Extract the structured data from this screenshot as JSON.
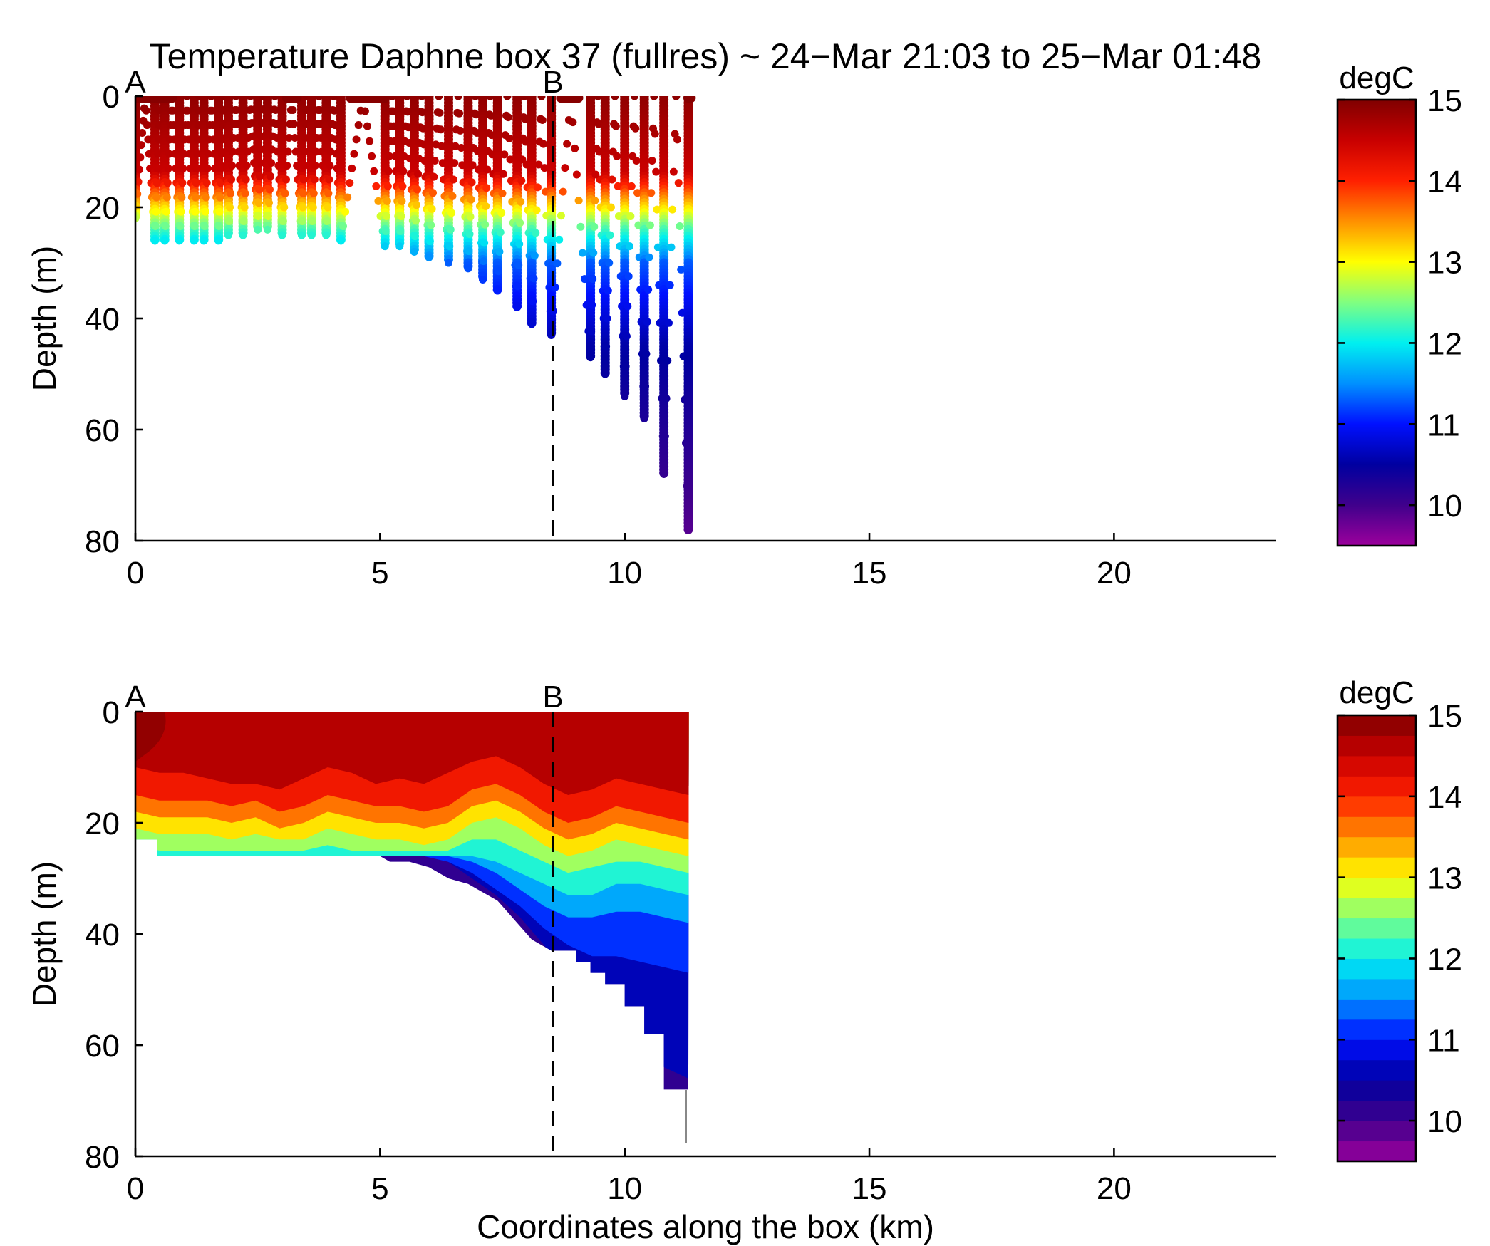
{
  "figure": {
    "title": "Temperature Daphne box 37 (fullres) ~ 24−Mar 21:03 to 25−Mar 01:48"
  },
  "colormap_stops": [
    "#9c009c",
    "#40008c",
    "#0000a0",
    "#0010ff",
    "#0090ff",
    "#00f0f0",
    "#80ff80",
    "#ffff00",
    "#ff9000",
    "#ff2000",
    "#c80000",
    "#800000"
  ],
  "chart_data": [
    {
      "type": "scatter",
      "panel": "top",
      "description_source": "glider profile samples colored by temperature",
      "xlabel": "",
      "ylabel": "Depth (m)",
      "xlim": [
        0,
        23.3
      ],
      "ylim": [
        80,
        0
      ],
      "x_ticks": [
        0,
        5,
        10,
        15,
        20
      ],
      "y_ticks": [
        0,
        20,
        40,
        60,
        80
      ],
      "markers": [
        {
          "label": "A",
          "x": 0
        },
        {
          "label": "B",
          "x": 8.6
        }
      ],
      "b_line_x": 8.6,
      "colorbar": {
        "unit": "degC",
        "ticks": [
          10,
          11,
          12,
          13,
          14,
          15
        ],
        "range": [
          9.5,
          15
        ],
        "continuous": true
      },
      "bottom_profile": [
        [
          0.0,
          22
        ],
        [
          0.5,
          26
        ],
        [
          1.0,
          26
        ],
        [
          1.5,
          26
        ],
        [
          2.0,
          25
        ],
        [
          2.5,
          24
        ],
        [
          3.0,
          25
        ],
        [
          3.6,
          25
        ],
        [
          4.2,
          26
        ],
        [
          5.0,
          27
        ],
        [
          5.5,
          28
        ],
        [
          6.0,
          29
        ],
        [
          6.5,
          31
        ],
        [
          7.0,
          33
        ],
        [
          7.5,
          35
        ],
        [
          8.0,
          38
        ],
        [
          8.6,
          43
        ],
        [
          9.0,
          45
        ],
        [
          9.3,
          47
        ],
        [
          9.6,
          50
        ],
        [
          10.0,
          54
        ],
        [
          10.4,
          58
        ],
        [
          10.8,
          68
        ],
        [
          11.3,
          78
        ]
      ],
      "profiles": [
        {
          "x": 0.0,
          "depth": 22
        },
        {
          "x": 0.4,
          "depth": 26
        },
        {
          "x": 0.6,
          "depth": 26
        },
        {
          "x": 0.9,
          "depth": 26
        },
        {
          "x": 1.2,
          "depth": 26
        },
        {
          "x": 1.4,
          "depth": 26
        },
        {
          "x": 1.7,
          "depth": 26
        },
        {
          "x": 1.9,
          "depth": 25
        },
        {
          "x": 2.2,
          "depth": 25
        },
        {
          "x": 2.5,
          "depth": 24
        },
        {
          "x": 2.7,
          "depth": 24
        },
        {
          "x": 3.0,
          "depth": 25
        },
        {
          "x": 3.4,
          "depth": 25
        },
        {
          "x": 3.6,
          "depth": 25
        },
        {
          "x": 3.9,
          "depth": 25
        },
        {
          "x": 4.2,
          "depth": 26
        },
        {
          "x": 5.1,
          "depth": 27
        },
        {
          "x": 5.4,
          "depth": 27
        },
        {
          "x": 5.7,
          "depth": 28
        },
        {
          "x": 6.0,
          "depth": 29
        },
        {
          "x": 6.4,
          "depth": 30
        },
        {
          "x": 6.8,
          "depth": 31
        },
        {
          "x": 7.1,
          "depth": 33
        },
        {
          "x": 7.4,
          "depth": 35
        },
        {
          "x": 7.8,
          "depth": 38
        },
        {
          "x": 8.1,
          "depth": 41
        },
        {
          "x": 8.5,
          "depth": 43
        },
        {
          "x": 9.3,
          "depth": 47
        },
        {
          "x": 9.6,
          "depth": 50
        },
        {
          "x": 10.0,
          "depth": 54
        },
        {
          "x": 10.4,
          "depth": 58
        },
        {
          "x": 10.8,
          "depth": 68
        },
        {
          "x": 11.3,
          "depth": 78
        }
      ],
      "surface_segments": [
        [
          0.0,
          0.8
        ],
        [
          3.1,
          3.3
        ],
        [
          4.4,
          5.1
        ],
        [
          8.7,
          9.1
        ],
        [
          11.3,
          11.4
        ]
      ]
    },
    {
      "type": "heatmap",
      "panel": "bottom",
      "description_source": "gridded temperature contour section",
      "xlabel": "Coordinates along the box (km)",
      "ylabel": "Depth (m)",
      "xlim": [
        0,
        23.3
      ],
      "ylim": [
        80,
        0
      ],
      "x_ticks": [
        0,
        5,
        10,
        15,
        20
      ],
      "y_ticks": [
        0,
        20,
        40,
        60,
        80
      ],
      "markers": [
        {
          "label": "A",
          "x": 0
        },
        {
          "label": "B",
          "x": 8.6
        }
      ],
      "b_line_x": 8.6,
      "colorbar": {
        "unit": "degC",
        "ticks": [
          10,
          11,
          12,
          13,
          14,
          15
        ],
        "range": [
          9.5,
          15
        ],
        "levels": 22
      },
      "data_extent_x": [
        0,
        11.3
      ],
      "bottom_boundary": [
        [
          0.0,
          23
        ],
        [
          0.45,
          23
        ],
        [
          0.45,
          26
        ],
        [
          5.0,
          26
        ],
        [
          5.2,
          27
        ],
        [
          5.6,
          27
        ],
        [
          6.0,
          28
        ],
        [
          6.4,
          30
        ],
        [
          6.8,
          31
        ],
        [
          7.0,
          32
        ],
        [
          7.4,
          34
        ],
        [
          7.6,
          36
        ],
        [
          7.8,
          38
        ],
        [
          8.1,
          41
        ],
        [
          8.5,
          43
        ],
        [
          9.0,
          43
        ],
        [
          9.0,
          45
        ],
        [
          9.3,
          45
        ],
        [
          9.3,
          47
        ],
        [
          9.6,
          47
        ],
        [
          9.6,
          49
        ],
        [
          10.0,
          49
        ],
        [
          10.0,
          53
        ],
        [
          10.4,
          53
        ],
        [
          10.4,
          58
        ],
        [
          10.8,
          58
        ],
        [
          10.8,
          68
        ],
        [
          11.3,
          68
        ],
        [
          11.3,
          69
        ]
      ],
      "isotherms": [
        {
          "temp": 14.5,
          "depth": [
            10,
            11,
            11,
            12,
            13,
            13,
            14,
            12,
            10,
            11,
            13,
            12,
            13,
            11,
            9,
            8,
            10,
            13,
            15,
            14,
            12,
            13,
            14,
            15
          ]
        },
        {
          "temp": 14.0,
          "depth": [
            15,
            16,
            16,
            16,
            17,
            16,
            18,
            17,
            15,
            16,
            17,
            17,
            18,
            17,
            14,
            13,
            15,
            18,
            20,
            19,
            17,
            18,
            19,
            20
          ]
        },
        {
          "temp": 13.5,
          "depth": [
            18,
            19,
            19,
            19,
            20,
            19,
            21,
            20,
            18,
            19,
            20,
            20,
            21,
            20,
            17,
            16,
            18,
            21,
            23,
            22,
            20,
            21,
            22,
            23
          ]
        },
        {
          "temp": 13.0,
          "depth": [
            21,
            22,
            22,
            22,
            23,
            22,
            23,
            23,
            21,
            22,
            23,
            23,
            24,
            23,
            20,
            19,
            21,
            24,
            26,
            25,
            23,
            24,
            25,
            26
          ]
        },
        {
          "temp": 12.5,
          "depth": [
            24,
            25,
            25,
            25,
            25,
            25,
            25,
            25,
            24,
            25,
            25,
            25,
            25,
            25,
            23,
            23,
            25,
            27,
            29,
            28,
            27,
            27,
            28,
            29
          ]
        },
        {
          "temp": 12.0,
          "depth": [
            26,
            26,
            26,
            26,
            26,
            26,
            26,
            26,
            26,
            26,
            26,
            26,
            26,
            26,
            26,
            27,
            29,
            31,
            33,
            33,
            31,
            31,
            32,
            33
          ]
        },
        {
          "temp": 11.5,
          "depth": [
            26,
            26,
            26,
            26,
            26,
            26,
            26,
            26,
            26,
            26,
            26,
            26,
            26,
            26,
            27,
            29,
            32,
            35,
            37,
            37,
            36,
            36,
            37,
            38
          ]
        },
        {
          "temp": 11.0,
          "depth": [
            26,
            26,
            26,
            26,
            26,
            26,
            26,
            26,
            26,
            26,
            26,
            26,
            26,
            27,
            29,
            32,
            35,
            39,
            42,
            44,
            44,
            45,
            46,
            47
          ]
        },
        {
          "temp": 10.5,
          "depth": [
            26,
            26,
            26,
            26,
            26,
            26,
            26,
            26,
            26,
            26,
            26,
            26,
            26,
            27,
            30,
            33,
            37,
            42,
            47,
            52,
            56,
            60,
            64,
            66
          ]
        }
      ]
    }
  ]
}
